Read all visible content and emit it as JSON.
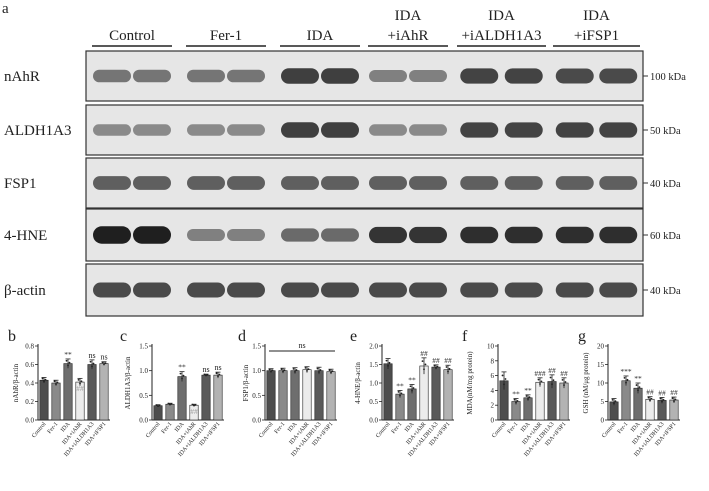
{
  "figure": {
    "panel_a_label": "a",
    "group_headers": [
      {
        "line1": "",
        "line2": "Control"
      },
      {
        "line1": "",
        "line2": "Fer-1"
      },
      {
        "line1": "",
        "line2": "IDA"
      },
      {
        "line1": "IDA",
        "line2": "+iAhR"
      },
      {
        "line1": "IDA",
        "line2": "+iALDH1A3"
      },
      {
        "line1": "IDA",
        "line2": "+iFSP1"
      }
    ],
    "blots": [
      {
        "protein": "nAhR",
        "kda": "100 kDa",
        "intensity": [
          0.55,
          0.55,
          0.55,
          0.55,
          0.8,
          0.8,
          0.5,
          0.5,
          0.78,
          0.78,
          0.75,
          0.75
        ]
      },
      {
        "protein": "ALDH1A3",
        "kda": "50 kDa",
        "intensity": [
          0.45,
          0.45,
          0.45,
          0.45,
          0.8,
          0.8,
          0.45,
          0.45,
          0.78,
          0.78,
          0.78,
          0.78
        ]
      },
      {
        "protein": "FSP1",
        "kda": "40 kDa",
        "intensity": [
          0.65,
          0.65,
          0.65,
          0.65,
          0.65,
          0.65,
          0.65,
          0.65,
          0.65,
          0.65,
          0.65,
          0.65
        ]
      },
      {
        "protein": "4-HNE",
        "kda": "60 kDa",
        "intensity": [
          0.95,
          0.95,
          0.5,
          0.5,
          0.6,
          0.6,
          0.85,
          0.85,
          0.88,
          0.88,
          0.88,
          0.88
        ]
      },
      {
        "protein": "β-actin",
        "kda": "40 kDa",
        "intensity": [
          0.75,
          0.75,
          0.75,
          0.75,
          0.75,
          0.75,
          0.75,
          0.75,
          0.75,
          0.75,
          0.75,
          0.75
        ]
      }
    ],
    "bar_colors": [
      "#4d4d4d",
      "#8a8a8a",
      "#6e6e6e",
      "#ececec",
      "#5a5a5a",
      "#b3b3b3"
    ]
  },
  "chart_data": [
    {
      "panel": "b",
      "type": "bar",
      "ylabel": "nAhR/β-actin",
      "categories": [
        "Control",
        "Fer-1",
        "IDA",
        "IDA+iAhR",
        "IDA+iALDH1A3",
        "IDA+iFSP1"
      ],
      "values": [
        0.43,
        0.4,
        0.61,
        0.41,
        0.6,
        0.61
      ],
      "errors": [
        0.03,
        0.03,
        0.05,
        0.04,
        0.05,
        0.02
      ],
      "ylim": [
        0,
        0.8
      ],
      "yticks": [
        "0.0",
        "0.2",
        "0.4",
        "0.6",
        "0.8"
      ],
      "annotations": [
        "",
        "",
        "**",
        "##",
        "ns",
        "ns"
      ]
    },
    {
      "panel": "c",
      "type": "bar",
      "ylabel": "ALDH1A3/β-actin",
      "categories": [
        "Control",
        "Fer-1",
        "IDA",
        "IDA+iAhR",
        "IDA+iALDH1A3",
        "IDA+iFSP1"
      ],
      "values": [
        0.29,
        0.32,
        0.88,
        0.3,
        0.91,
        0.91
      ],
      "errors": [
        0.02,
        0.02,
        0.1,
        0.02,
        0.02,
        0.06
      ],
      "ylim": [
        0,
        1.5
      ],
      "yticks": [
        "0.0",
        "0.5",
        "1.0",
        "1.5"
      ],
      "annotations": [
        "",
        "",
        "**",
        "##",
        "ns",
        "ns"
      ]
    },
    {
      "panel": "d",
      "type": "bar",
      "ylabel": "FSP1/β-actin",
      "categories": [
        "Control",
        "Fer-1",
        "IDA",
        "IDA+iAhR",
        "IDA+iALDH1A3",
        "IDA+iFSP1"
      ],
      "values": [
        1.0,
        1.0,
        1.0,
        1.02,
        1.0,
        0.98
      ],
      "errors": [
        0.04,
        0.05,
        0.06,
        0.06,
        0.07,
        0.05
      ],
      "ylim": [
        0,
        1.5
      ],
      "yticks": [
        "0.0",
        "0.5",
        "1.0",
        "1.5"
      ],
      "annotations": [
        "",
        "",
        "",
        "",
        "",
        ""
      ],
      "bracket_label": "ns"
    },
    {
      "panel": "e",
      "type": "bar",
      "ylabel": "4-HNE/β-actin",
      "categories": [
        "Control",
        "Fer-1",
        "IDA",
        "IDA+iAhR",
        "IDA+iALDH1A3",
        "IDA+iFSP1"
      ],
      "values": [
        1.52,
        0.7,
        0.84,
        1.46,
        1.43,
        1.36
      ],
      "errors": [
        0.14,
        0.1,
        0.12,
        0.22,
        0.06,
        0.12
      ],
      "ylim": [
        0,
        2.0
      ],
      "yticks": [
        "0.0",
        "0.5",
        "1.0",
        "1.5",
        "2.0"
      ],
      "annotations": [
        "",
        "**",
        "**",
        "##",
        "##",
        "##"
      ]
    },
    {
      "panel": "f",
      "type": "bar",
      "ylabel": "MDA(nM/mg protein)",
      "categories": [
        "Control",
        "Fer-1",
        "IDA",
        "IDA+iAhR",
        "IDA+iALDH1A3",
        "IDA+iFSP1"
      ],
      "values": [
        5.3,
        2.5,
        3.0,
        5.1,
        5.2,
        5.0
      ],
      "errors": [
        1.2,
        0.4,
        0.4,
        0.6,
        0.9,
        0.7
      ],
      "ylim": [
        0,
        10
      ],
      "yticks": [
        "0",
        "2",
        "4",
        "6",
        "8",
        "10"
      ],
      "annotations": [
        "",
        "**",
        "**",
        "###",
        "##",
        "##"
      ]
    },
    {
      "panel": "g",
      "type": "bar",
      "ylabel": "GSH (nM/μg protein)",
      "categories": [
        "Control",
        "Fer-1",
        "IDA",
        "IDA+iAhR",
        "IDA+iALDH1A3",
        "IDA+iFSP1"
      ],
      "values": [
        4.9,
        10.6,
        8.6,
        5.6,
        5.3,
        5.4
      ],
      "errors": [
        0.9,
        1.3,
        1.4,
        0.7,
        0.8,
        0.8
      ],
      "ylim": [
        0,
        20
      ],
      "yticks": [
        "0",
        "5",
        "10",
        "15",
        "20"
      ],
      "annotations": [
        "",
        "***",
        "**",
        "##",
        "##",
        "##"
      ]
    }
  ]
}
